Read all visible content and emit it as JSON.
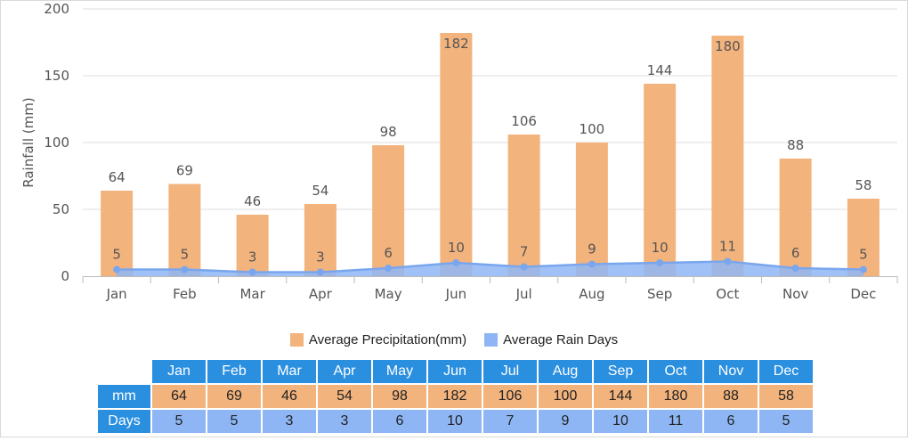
{
  "chart_data": {
    "type": "bar",
    "categories": [
      "Jan",
      "Feb",
      "Mar",
      "Apr",
      "May",
      "Jun",
      "Jul",
      "Aug",
      "Sep",
      "Oct",
      "Nov",
      "Dec"
    ],
    "series": [
      {
        "name": "Average Precipitation(mm)",
        "type": "bar",
        "values": [
          64,
          69,
          46,
          54,
          98,
          182,
          106,
          100,
          144,
          180,
          88,
          58
        ]
      },
      {
        "name": "Average Rain Days",
        "type": "area",
        "values": [
          5,
          5,
          3,
          3,
          6,
          10,
          7,
          9,
          10,
          11,
          6,
          5
        ]
      }
    ],
    "ylabel": "Rainfall (mm)",
    "xlabel": "",
    "ylim": [
      0,
      200
    ],
    "yticks": [
      0,
      50,
      100,
      150,
      200
    ],
    "grid": true,
    "legend_position": "bottom",
    "colors": {
      "bar": "#f3b37d",
      "area": "#8eb6f4",
      "line": "#7aa6ee",
      "header": "#2b8fe0"
    }
  },
  "table": {
    "row_labels": {
      "mm": "mm",
      "days": "Days"
    }
  }
}
